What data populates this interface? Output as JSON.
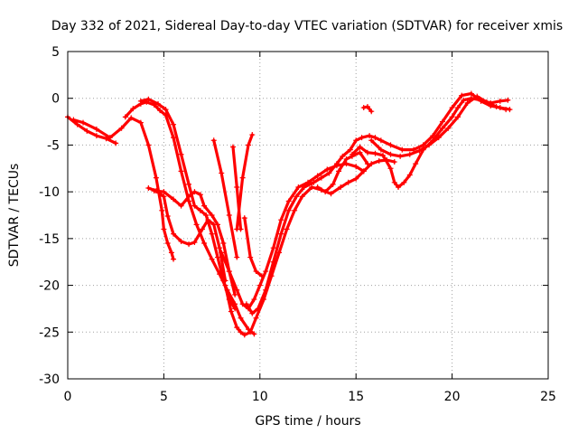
{
  "chart_data": {
    "type": "scatter",
    "title": "Day 332 of 2021, Sidereal Day-to-day VTEC variation (SDTVAR) for receiver xmis",
    "xlabel": "GPS time / hours",
    "ylabel": "SDTVAR / TECUs",
    "xlim": [
      0,
      25
    ],
    "ylim": [
      -30,
      5
    ],
    "xticks": [
      0,
      5,
      10,
      15,
      20,
      25
    ],
    "yticks": [
      5,
      0,
      -5,
      -10,
      -15,
      -20,
      -25,
      -30
    ],
    "xtick_labels": [
      "0",
      "5",
      "10",
      "15",
      "20",
      "25"
    ],
    "ytick_labels": [
      "5",
      "0",
      "-5",
      "-10",
      "-15",
      "-20",
      "-25",
      "-30"
    ],
    "grid": true,
    "marker": "plus",
    "color": "#ff0000",
    "series": [
      {
        "name": "trace-1",
        "x": [
          0,
          0.5,
          1.0,
          1.5,
          2.0,
          2.5
        ],
        "y": [
          -2,
          -2.8,
          -3.5,
          -4.0,
          -4.3,
          -4.8
        ]
      },
      {
        "name": "trace-2",
        "x": [
          0.3,
          0.8,
          1.5,
          2.2,
          2.8,
          3.3,
          3.8,
          4.2,
          4.6,
          4.9,
          5.0,
          5.2,
          5.4,
          5.5
        ],
        "y": [
          -2.3,
          -2.6,
          -3.3,
          -4.2,
          -3.2,
          -2.1,
          -2.6,
          -5.0,
          -8.5,
          -12.0,
          -14.0,
          -15.5,
          -16.5,
          -17.2
        ]
      },
      {
        "name": "trace-3",
        "x": [
          3.0,
          3.4,
          3.8,
          4.1,
          4.5,
          4.8,
          5.1,
          5.5,
          5.9,
          6.3,
          6.7,
          7.1,
          7.5,
          7.9,
          8.3,
          8.7,
          9.0,
          9.4,
          9.7
        ],
        "y": [
          -2.0,
          -1.1,
          -0.6,
          -0.4,
          -0.7,
          -1.3,
          -1.8,
          -4.2,
          -7.8,
          -11.0,
          -13.5,
          -15.5,
          -17.2,
          -18.8,
          -20.5,
          -22.0,
          -23.5,
          -24.7,
          -25.2
        ]
      },
      {
        "name": "trace-4",
        "x": [
          3.8,
          4.2,
          4.7,
          5.1,
          5.5,
          5.9,
          6.3,
          6.6,
          6.9,
          7.2,
          7.5,
          7.8,
          8.1,
          8.4,
          8.7
        ],
        "y": [
          -0.3,
          -0.1,
          -0.6,
          -1.2,
          -2.8,
          -6.0,
          -9.2,
          -11.5,
          -12.0,
          -12.5,
          -14.5,
          -17.0,
          -19.5,
          -21.5,
          -22.5
        ]
      },
      {
        "name": "trace-5",
        "x": [
          4.2,
          4.6,
          5.0,
          5.2,
          5.5,
          5.9,
          6.3,
          6.6,
          7.0,
          7.3,
          7.6,
          7.9,
          8.2
        ],
        "y": [
          -9.6,
          -9.9,
          -10.5,
          -12.6,
          -14.5,
          -15.3,
          -15.6,
          -15.4,
          -14.0,
          -13.0,
          -13.5,
          -16.0,
          -19.5
        ]
      },
      {
        "name": "trace-6",
        "x": [
          4.5,
          5.0,
          5.5,
          5.9,
          6.3,
          6.6,
          6.9,
          7.1,
          7.5,
          7.8,
          8.1,
          8.4,
          8.7
        ],
        "y": [
          -9.9,
          -10.0,
          -10.8,
          -11.5,
          -10.5,
          -10.0,
          -10.3,
          -11.5,
          -12.5,
          -13.5,
          -15.5,
          -18.5,
          -21.0
        ]
      },
      {
        "name": "trace-7",
        "x": [
          8.2,
          8.5,
          8.8,
          9.0,
          9.2,
          9.5,
          9.8,
          10.2,
          10.6,
          11.0,
          11.4,
          11.8,
          12.2,
          12.7,
          13.2,
          13.7,
          14.2,
          14.6,
          15.0,
          15.4,
          15.8,
          16.2,
          16.6,
          17.0
        ],
        "y": [
          -20.0,
          -22.8,
          -24.5,
          -25.0,
          -25.3,
          -25.0,
          -23.5,
          -21.5,
          -19.0,
          -16.5,
          -14.0,
          -12.0,
          -10.5,
          -9.5,
          -9.8,
          -10.2,
          -9.5,
          -9.0,
          -8.6,
          -7.8,
          -7.0,
          -6.7,
          -6.6,
          -6.8
        ]
      },
      {
        "name": "trace-8",
        "x": [
          9.3,
          9.6,
          9.9,
          10.3,
          10.7,
          11.1,
          11.5,
          11.9,
          12.3,
          12.8,
          13.2,
          13.6,
          14.0,
          14.3,
          14.7,
          15.0,
          15.3,
          15.7,
          16.0,
          16.3,
          16.8,
          17.4,
          18.0,
          18.5,
          19.0,
          19.5,
          20.0,
          20.5,
          21.0,
          21.5,
          22.0,
          22.5,
          23.0
        ],
        "y": [
          -22.0,
          -23.0,
          -22.5,
          -20.5,
          -17.5,
          -14.5,
          -12.0,
          -10.5,
          -9.5,
          -9.0,
          -8.5,
          -8.0,
          -7.0,
          -6.2,
          -5.5,
          -4.5,
          -4.2,
          -4.0,
          -4.2,
          -4.5,
          -5.0,
          -5.5,
          -5.5,
          -5.0,
          -4.0,
          -2.5,
          -1.0,
          0.3,
          0.5,
          -0.3,
          -0.8,
          -1.0,
          -1.2
        ]
      },
      {
        "name": "trace-9",
        "x": [
          8.0,
          8.4,
          8.8,
          9.1,
          9.4,
          9.7,
          10.0,
          10.3,
          10.7,
          11.1,
          11.5,
          12.0,
          12.5,
          13.0,
          13.5,
          14.0,
          14.5,
          15.0,
          15.4
        ],
        "y": [
          -16.5,
          -18.5,
          -20.5,
          -22.0,
          -22.5,
          -21.5,
          -20.0,
          -18.5,
          -16.0,
          -13.0,
          -11.0,
          -9.5,
          -9.0,
          -8.3,
          -7.6,
          -7.2,
          -7.0,
          -7.3,
          -7.8
        ]
      },
      {
        "name": "trace-10",
        "x": [
          8.8,
          9.1,
          9.4,
          9.6
        ],
        "y": [
          -14.0,
          -8.5,
          -5.0,
          -3.9
        ]
      },
      {
        "name": "trace-11",
        "x": [
          7.6,
          8.0,
          8.4,
          8.8
        ],
        "y": [
          -4.5,
          -8.0,
          -12.5,
          -17.0
        ]
      },
      {
        "name": "trace-12",
        "x": [
          8.6,
          8.8,
          9.0
        ],
        "y": [
          -5.2,
          -9.5,
          -14.0
        ]
      },
      {
        "name": "trace-13",
        "x": [
          9.2,
          9.5,
          9.8,
          10.1
        ],
        "y": [
          -12.8,
          -17.0,
          -18.5,
          -19.0
        ]
      },
      {
        "name": "trace-14",
        "x": [
          13.0,
          13.4,
          13.8,
          14.1,
          14.5,
          14.8,
          15.2,
          15.6
        ],
        "y": [
          -9.5,
          -10.0,
          -9.2,
          -7.8,
          -6.5,
          -6.2,
          -5.8,
          -7.0
        ]
      },
      {
        "name": "trace-15",
        "x": [
          14.8,
          15.2,
          15.6,
          16.0,
          16.4,
          16.8,
          17.0,
          17.2,
          17.5,
          17.8,
          18.1,
          18.5,
          19.0,
          19.5,
          20.0,
          20.3,
          20.6,
          21.0,
          21.5,
          22.0,
          22.5,
          22.9
        ],
        "y": [
          -6.0,
          -5.2,
          -5.8,
          -5.9,
          -6.1,
          -7.5,
          -9.0,
          -9.5,
          -9.0,
          -8.2,
          -7.0,
          -5.5,
          -4.5,
          -3.2,
          -2.0,
          -1.0,
          -0.2,
          0.0,
          -0.2,
          -0.5,
          -0.3,
          -0.2
        ]
      },
      {
        "name": "trace-16",
        "x": [
          15.4,
          15.6,
          15.8
        ],
        "y": [
          -1.0,
          -0.9,
          -1.4
        ]
      },
      {
        "name": "trace-17",
        "x": [
          15.8,
          16.3,
          16.8,
          17.3,
          17.8,
          18.3,
          18.8,
          19.3,
          19.8,
          20.3,
          20.8,
          21.3,
          21.8,
          22.3,
          22.8
        ],
        "y": [
          -4.5,
          -5.5,
          -6.0,
          -6.2,
          -6.0,
          -5.6,
          -5.0,
          -4.2,
          -3.2,
          -2.0,
          -0.5,
          0.2,
          -0.4,
          -0.9,
          -1.2
        ]
      }
    ]
  }
}
